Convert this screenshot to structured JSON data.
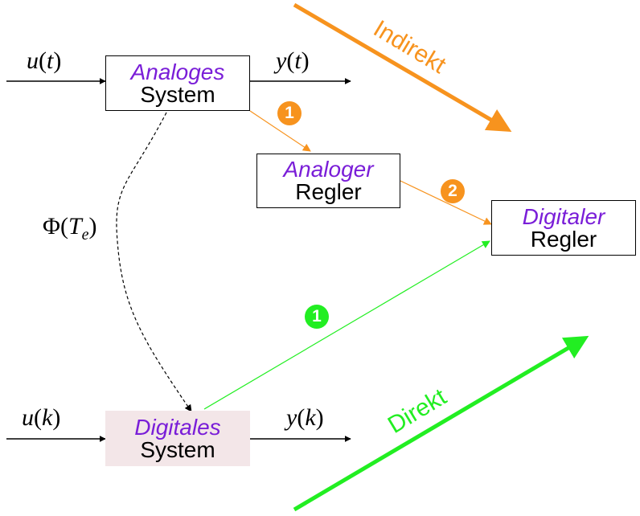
{
  "colors": {
    "orange": "#f7931e",
    "green": "#22ee22",
    "purple": "#7a1ed8",
    "digital_fill": "#f3e6e8"
  },
  "boxes": {
    "analog_system": {
      "line1": "Analoges",
      "line2": "System"
    },
    "analog_controller": {
      "line1": "Analoger",
      "line2": "Regler"
    },
    "digital_controller": {
      "line1": "Digitaler",
      "line2": "Regler"
    },
    "digital_system": {
      "line1": "Digitales",
      "line2": "System"
    }
  },
  "signals": {
    "u_t": {
      "sym": "u",
      "arg": "t"
    },
    "y_t": {
      "sym": "y",
      "arg": "t"
    },
    "u_k": {
      "sym": "u",
      "arg": "k"
    },
    "y_k": {
      "sym": "y",
      "arg": "k"
    },
    "phi": {
      "sym": "Φ",
      "arg": "T",
      "sub": "e"
    }
  },
  "badges": {
    "orange_1": "1",
    "orange_2": "2",
    "green_1": "1"
  },
  "labels": {
    "indirect": "Indirekt",
    "direct": "Direkt"
  }
}
